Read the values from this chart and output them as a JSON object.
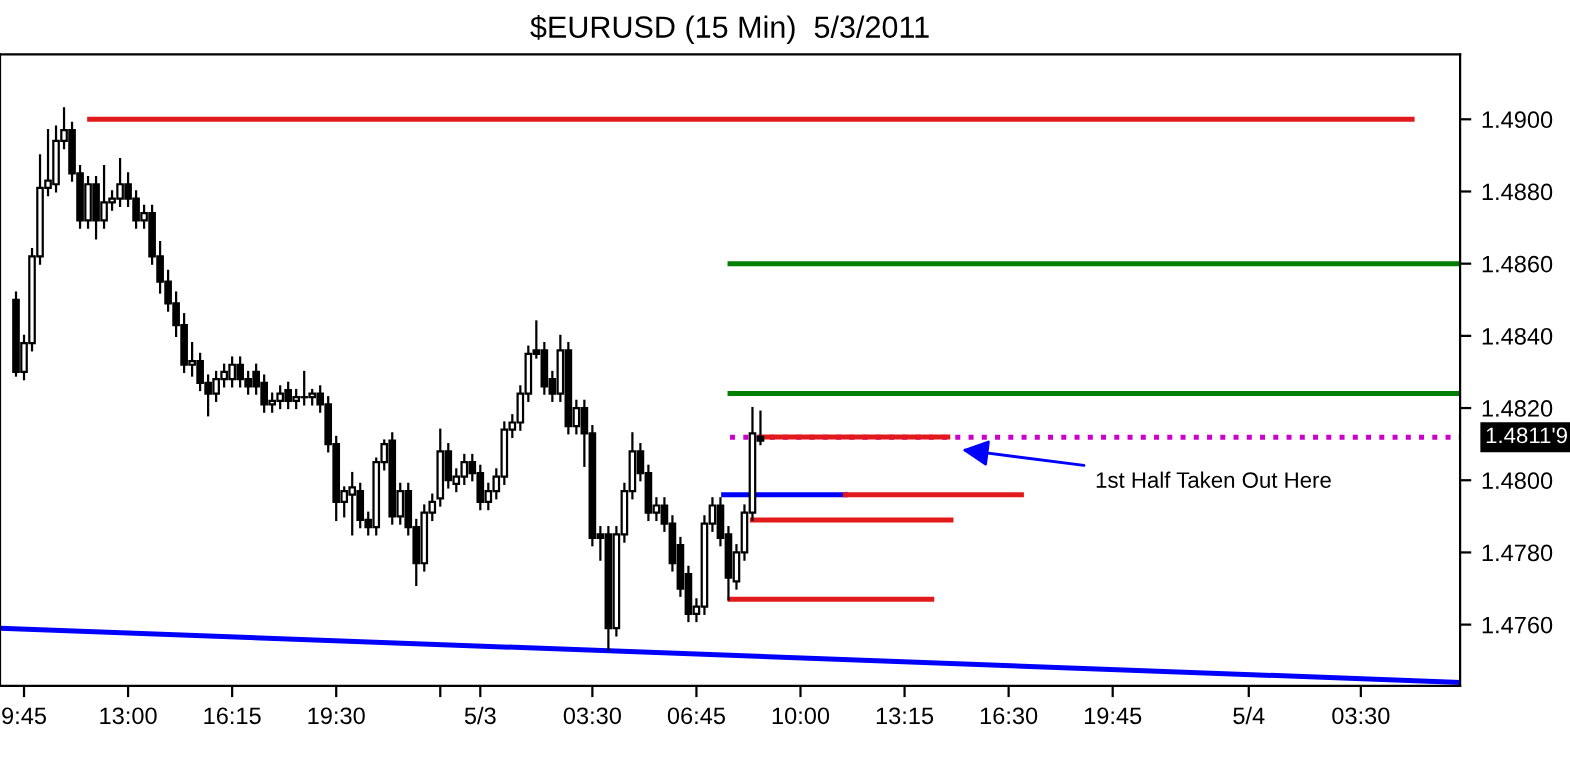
{
  "chart_data": {
    "type": "candlestick",
    "title": "$EURUSD (15 Min)  5/3/2011",
    "x": [
      "2011-05-02T09:30",
      "2011-05-02T09:45",
      "2011-05-02T10:00",
      "2011-05-02T10:15",
      "2011-05-02T10:30",
      "2011-05-02T10:45",
      "2011-05-02T11:00",
      "2011-05-02T11:15",
      "2011-05-02T11:30",
      "2011-05-02T11:45",
      "2011-05-02T12:00",
      "2011-05-02T12:15",
      "2011-05-02T12:30",
      "2011-05-02T12:45",
      "2011-05-02T13:00",
      "2011-05-02T13:15",
      "2011-05-02T13:30",
      "2011-05-02T13:45",
      "2011-05-02T14:00",
      "2011-05-02T14:15",
      "2011-05-02T14:30",
      "2011-05-02T14:45",
      "2011-05-02T15:00",
      "2011-05-02T15:15",
      "2011-05-02T15:30",
      "2011-05-02T15:45",
      "2011-05-02T16:00",
      "2011-05-02T16:15",
      "2011-05-02T16:30",
      "2011-05-02T16:45",
      "2011-05-02T17:00",
      "2011-05-02T17:15",
      "2011-05-02T17:30",
      "2011-05-02T17:45",
      "2011-05-02T18:00",
      "2011-05-02T18:15",
      "2011-05-02T18:30",
      "2011-05-02T18:45",
      "2011-05-02T19:00",
      "2011-05-02T19:15",
      "2011-05-02T19:30",
      "2011-05-02T19:45",
      "2011-05-02T20:00",
      "2011-05-02T20:15",
      "2011-05-02T20:30",
      "2011-05-02T20:45",
      "2011-05-02T21:00",
      "2011-05-02T21:15",
      "2011-05-02T21:30",
      "2011-05-02T21:45",
      "2011-05-02T22:00",
      "2011-05-02T22:15",
      "2011-05-02T22:30",
      "2011-05-02T22:45",
      "2011-05-02T23:00",
      "2011-05-02T23:15",
      "2011-05-02T23:30",
      "2011-05-02T23:45",
      "2011-05-03T00:00",
      "2011-05-03T00:15",
      "2011-05-03T00:30",
      "2011-05-03T00:45",
      "2011-05-03T01:00",
      "2011-05-03T01:15",
      "2011-05-03T01:30",
      "2011-05-03T01:45",
      "2011-05-03T02:00",
      "2011-05-03T02:15",
      "2011-05-03T02:30",
      "2011-05-03T02:45",
      "2011-05-03T03:00",
      "2011-05-03T03:15",
      "2011-05-03T03:30",
      "2011-05-03T03:45",
      "2011-05-03T04:00",
      "2011-05-03T04:15",
      "2011-05-03T04:30",
      "2011-05-03T04:45",
      "2011-05-03T05:00",
      "2011-05-03T05:15",
      "2011-05-03T05:30",
      "2011-05-03T05:45",
      "2011-05-03T06:00",
      "2011-05-03T06:15",
      "2011-05-03T06:30",
      "2011-05-03T06:45",
      "2011-05-03T07:00",
      "2011-05-03T07:15",
      "2011-05-03T07:30",
      "2011-05-03T07:45",
      "2011-05-03T08:00",
      "2011-05-03T08:15",
      "2011-05-03T08:30",
      "2011-05-03T08:45"
    ],
    "ohlc": [
      [
        1.485,
        1.4852,
        1.4829,
        1.483
      ],
      [
        1.483,
        1.484,
        1.4828,
        1.4838
      ],
      [
        1.4838,
        1.4864,
        1.4836,
        1.4862
      ],
      [
        1.4862,
        1.489,
        1.486,
        1.4881
      ],
      [
        1.4881,
        1.4897,
        1.4879,
        1.4883
      ],
      [
        1.4882,
        1.4898,
        1.488,
        1.4894
      ],
      [
        1.4894,
        1.4903,
        1.4892,
        1.4897
      ],
      [
        1.4897,
        1.4899,
        1.4883,
        1.4885
      ],
      [
        1.4885,
        1.4887,
        1.487,
        1.4872
      ],
      [
        1.4872,
        1.4884,
        1.487,
        1.4882
      ],
      [
        1.4882,
        1.4884,
        1.4867,
        1.4872
      ],
      [
        1.4872,
        1.4887,
        1.487,
        1.4877
      ],
      [
        1.4877,
        1.488,
        1.4875,
        1.4878
      ],
      [
        1.4878,
        1.4889,
        1.4876,
        1.4882
      ],
      [
        1.4882,
        1.4885,
        1.4876,
        1.4878
      ],
      [
        1.4878,
        1.488,
        1.487,
        1.4872
      ],
      [
        1.4872,
        1.4876,
        1.487,
        1.4874
      ],
      [
        1.4874,
        1.4876,
        1.486,
        1.4862
      ],
      [
        1.4862,
        1.4866,
        1.4852,
        1.4855
      ],
      [
        1.4855,
        1.4858,
        1.4847,
        1.4849
      ],
      [
        1.4849,
        1.4852,
        1.484,
        1.4843
      ],
      [
        1.4843,
        1.4846,
        1.483,
        1.4832
      ],
      [
        1.4832,
        1.4838,
        1.4829,
        1.4833
      ],
      [
        1.4833,
        1.4835,
        1.4825,
        1.4827
      ],
      [
        1.4827,
        1.4829,
        1.4818,
        1.4824
      ],
      [
        1.4824,
        1.483,
        1.4822,
        1.4828
      ],
      [
        1.4828,
        1.4832,
        1.4826,
        1.483
      ],
      [
        1.4828,
        1.4834,
        1.4826,
        1.4832
      ],
      [
        1.4832,
        1.4834,
        1.4826,
        1.4828
      ],
      [
        1.4828,
        1.483,
        1.4824,
        1.4826
      ],
      [
        1.483,
        1.4832,
        1.4824,
        1.4826
      ],
      [
        1.4827,
        1.4829,
        1.4819,
        1.4821
      ],
      [
        1.4821,
        1.4824,
        1.4819,
        1.4822
      ],
      [
        1.4822,
        1.4826,
        1.482,
        1.4824
      ],
      [
        1.4825,
        1.4827,
        1.482,
        1.4822
      ],
      [
        1.4822,
        1.4825,
        1.482,
        1.4823
      ],
      [
        1.4823,
        1.483,
        1.4821,
        1.4823
      ],
      [
        1.4823,
        1.4825,
        1.4821,
        1.4824
      ],
      [
        1.4824,
        1.4826,
        1.4819,
        1.4821
      ],
      [
        1.4821,
        1.4823,
        1.4808,
        1.481
      ],
      [
        1.481,
        1.4812,
        1.4789,
        1.4794
      ],
      [
        1.4794,
        1.4798,
        1.479,
        1.4797
      ],
      [
        1.4796,
        1.4802,
        1.4785,
        1.4798
      ],
      [
        1.4797,
        1.4799,
        1.4787,
        1.4789
      ],
      [
        1.4789,
        1.4791,
        1.4785,
        1.4787
      ],
      [
        1.4787,
        1.4806,
        1.4785,
        1.4805
      ],
      [
        1.4805,
        1.4811,
        1.4803,
        1.481
      ],
      [
        1.4811,
        1.4813,
        1.4788,
        1.479
      ],
      [
        1.479,
        1.4799,
        1.4788,
        1.4797
      ],
      [
        1.4797,
        1.4799,
        1.4785,
        1.4787
      ],
      [
        1.4787,
        1.4789,
        1.4771,
        1.4777
      ],
      [
        1.4777,
        1.4793,
        1.4775,
        1.4791
      ],
      [
        1.4791,
        1.4796,
        1.4789,
        1.4794
      ],
      [
        1.4795,
        1.4814,
        1.4793,
        1.4808
      ],
      [
        1.4808,
        1.481,
        1.4798,
        1.48
      ],
      [
        1.4799,
        1.4803,
        1.4797,
        1.4801
      ],
      [
        1.4801,
        1.4807,
        1.4799,
        1.4805
      ],
      [
        1.4805,
        1.4807,
        1.48,
        1.4802
      ],
      [
        1.4802,
        1.4804,
        1.4792,
        1.4794
      ],
      [
        1.4794,
        1.4799,
        1.4792,
        1.4797
      ],
      [
        1.4797,
        1.4803,
        1.4795,
        1.4801
      ],
      [
        1.4801,
        1.4816,
        1.4799,
        1.4814
      ],
      [
        1.4814,
        1.4818,
        1.4812,
        1.4816
      ],
      [
        1.4816,
        1.4826,
        1.4814,
        1.4824
      ],
      [
        1.4824,
        1.4837,
        1.4822,
        1.4835
      ],
      [
        1.4836,
        1.4844,
        1.4834,
        1.4835
      ],
      [
        1.4836,
        1.4838,
        1.4824,
        1.4826
      ],
      [
        1.4828,
        1.483,
        1.4822,
        1.4824
      ],
      [
        1.4824,
        1.484,
        1.4822,
        1.4836
      ],
      [
        1.4836,
        1.4838,
        1.4813,
        1.4815
      ],
      [
        1.4815,
        1.4822,
        1.4813,
        1.482
      ],
      [
        1.482,
        1.4822,
        1.4804,
        1.4813
      ],
      [
        1.4813,
        1.4815,
        1.4782,
        1.4784
      ],
      [
        1.4785,
        1.4787,
        1.4778,
        1.4784
      ],
      [
        1.4785,
        1.4787,
        1.4753,
        1.4759
      ],
      [
        1.4759,
        1.4787,
        1.4757,
        1.4785
      ],
      [
        1.4785,
        1.4799,
        1.4783,
        1.4797
      ],
      [
        1.4797,
        1.4813,
        1.4795,
        1.4808
      ],
      [
        1.4808,
        1.481,
        1.48,
        1.4802
      ],
      [
        1.4802,
        1.4804,
        1.4789,
        1.4791
      ],
      [
        1.4791,
        1.4795,
        1.4789,
        1.4793
      ],
      [
        1.4793,
        1.4795,
        1.4786,
        1.4788
      ],
      [
        1.4788,
        1.479,
        1.4775,
        1.4777
      ],
      [
        1.4782,
        1.4784,
        1.4768,
        1.477
      ],
      [
        1.4774,
        1.4776,
        1.4761,
        1.4763
      ],
      [
        1.4763,
        1.4767,
        1.4761,
        1.4765
      ],
      [
        1.4765,
        1.479,
        1.4763,
        1.4788
      ],
      [
        1.4788,
        1.4795,
        1.4786,
        1.4793
      ],
      [
        1.4793,
        1.4795,
        1.4782,
        1.4784
      ],
      [
        1.4785,
        1.4787,
        1.4767,
        1.4773
      ],
      [
        1.4772,
        1.4782,
        1.477,
        1.478
      ],
      [
        1.478,
        1.4793,
        1.4778,
        1.4791
      ],
      [
        1.4791,
        1.482,
        1.4789,
        1.4813
      ],
      [
        1.4812,
        1.4819,
        1.481,
        1.4811
      ]
    ],
    "series": [
      {
        "type": "line",
        "color": "#e31a1c",
        "x": [
          "2011-05-02T11:48",
          "2011-05-04T05:06"
        ],
        "values": [
          1.49,
          1.49
        ]
      },
      {
        "type": "line",
        "color": "#007f00",
        "x": [
          "2011-05-03T07:48",
          "2011-05-04T06:36"
        ],
        "values": [
          1.486,
          1.486
        ]
      },
      {
        "type": "line",
        "color": "#007f00",
        "x": [
          "2011-05-03T07:48",
          "2011-05-04T06:36"
        ],
        "values": [
          1.4824,
          1.4824
        ]
      },
      {
        "type": "line",
        "color": "#cc00cc",
        "line_style": "dotted",
        "x": [
          "2011-05-03T07:48",
          "2011-05-04T06:36"
        ],
        "values": [
          1.48119,
          1.48119
        ]
      },
      {
        "type": "line",
        "color": "#e31a1c",
        "x": [
          "2011-05-03T08:45",
          "2011-05-03T14:36"
        ],
        "values": [
          1.4812,
          1.4812
        ]
      },
      {
        "type": "line",
        "color": "#0000ff",
        "x": [
          "2011-05-03T07:36",
          "2011-05-03T11:24"
        ],
        "values": [
          1.4796,
          1.4796
        ]
      },
      {
        "type": "line",
        "color": "#e31a1c",
        "x": [
          "2011-05-03T11:24",
          "2011-05-03T16:54"
        ],
        "values": [
          1.4796,
          1.4796
        ]
      },
      {
        "type": "line",
        "color": "#e31a1c",
        "x": [
          "2011-05-03T08:30",
          "2011-05-03T14:42"
        ],
        "values": [
          1.4789,
          1.4789
        ]
      },
      {
        "type": "line",
        "color": "#e31a1c",
        "x": [
          "2011-05-03T07:48",
          "2011-05-03T14:06"
        ],
        "values": [
          1.4767,
          1.4767
        ]
      },
      {
        "type": "line",
        "color": "#0000ff",
        "x": [
          "2011-05-02T09:00",
          "2011-05-04T06:36"
        ],
        "values": [
          1.4759,
          1.4744
        ]
      }
    ],
    "annotations": [
      "1st Half Taken Out Here",
      {
        "text": "1.4811'9",
        "x": "2011-05-04T06:36",
        "y": 1.48119
      }
    ],
    "xlim": [
      "2011-05-02T09:00",
      "2011-05-04T06:36"
    ],
    "xticks": [
      {
        "value": "2011-05-02T09:45",
        "label": "9:45"
      },
      {
        "value": "2011-05-02T13:00",
        "label": "13:00"
      },
      {
        "value": "2011-05-02T16:15",
        "label": "16:15"
      },
      {
        "value": "2011-05-02T19:30",
        "label": "19:30"
      },
      {
        "value": "2011-05-02T22:45",
        "label": null
      },
      {
        "value": "2011-05-03T00:00",
        "label": "5/3"
      },
      {
        "value": "2011-05-03T03:30",
        "label": "03:30"
      },
      {
        "value": "2011-05-03T06:45",
        "label": "06:45"
      },
      {
        "value": "2011-05-03T10:00",
        "label": "10:00"
      },
      {
        "value": "2011-05-03T13:15",
        "label": "13:15"
      },
      {
        "value": "2011-05-03T16:30",
        "label": "16:30"
      },
      {
        "value": "2011-05-03T19:45",
        "label": "19:45"
      },
      {
        "value": "2011-05-04T00:00",
        "label": "5/4"
      },
      {
        "value": "2011-05-04T03:30",
        "label": "03:30"
      }
    ],
    "ylim": [
      1.4743,
      1.4918
    ],
    "yticks": [
      {
        "value": 1.476,
        "label": "1.4760"
      },
      {
        "value": 1.478,
        "label": "1.4780"
      },
      {
        "value": 1.48,
        "label": "1.4800"
      },
      {
        "value": 1.482,
        "label": "1.4820"
      },
      {
        "value": 1.484,
        "label": "1.4840"
      },
      {
        "value": 1.486,
        "label": "1.4860"
      },
      {
        "value": 1.488,
        "label": "1.4880"
      },
      {
        "value": 1.49,
        "label": "1.4900"
      }
    ]
  }
}
